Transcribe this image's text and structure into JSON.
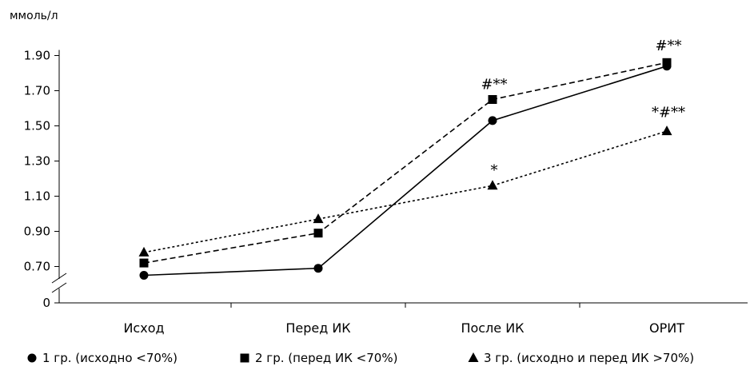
{
  "chart_data": {
    "type": "line",
    "ylabel": "ммоль/л",
    "categories": [
      "Исход",
      "Перед ИК",
      "После ИК",
      "ОРИТ"
    ],
    "y_ticks": [
      "0",
      "0.70",
      "0.90",
      "1.10",
      "1.30",
      "1.50",
      "1.70",
      "1.90"
    ],
    "y_tick_values": [
      0,
      0.7,
      0.9,
      1.1,
      1.3,
      1.5,
      1.7,
      1.9
    ],
    "axis_break": true,
    "ylim": [
      0.6,
      1.95
    ],
    "grid": false,
    "legend_position": "bottom",
    "series": [
      {
        "name": "1 гр. (исходно <70%)",
        "marker": "circle",
        "line_style": "solid",
        "values": [
          0.65,
          0.69,
          1.53,
          1.84
        ]
      },
      {
        "name": "2 гр. (перед ИК <70%)",
        "marker": "square",
        "line_style": "dashed",
        "values": [
          0.72,
          0.89,
          1.65,
          1.86
        ]
      },
      {
        "name": "3 гр. (исходно и перед ИК >70%)",
        "marker": "triangle",
        "line_style": "dotted",
        "values": [
          0.78,
          0.97,
          1.16,
          1.47
        ]
      }
    ],
    "annotations": [
      {
        "text": "#**",
        "category": "После ИК",
        "y": 1.71
      },
      {
        "text": "#**",
        "category": "ОРИТ",
        "y": 1.93
      },
      {
        "text": "*#**",
        "category": "ОРИТ",
        "y": 1.55
      },
      {
        "text": "*",
        "category": "После ИК",
        "y": 1.22
      }
    ]
  }
}
